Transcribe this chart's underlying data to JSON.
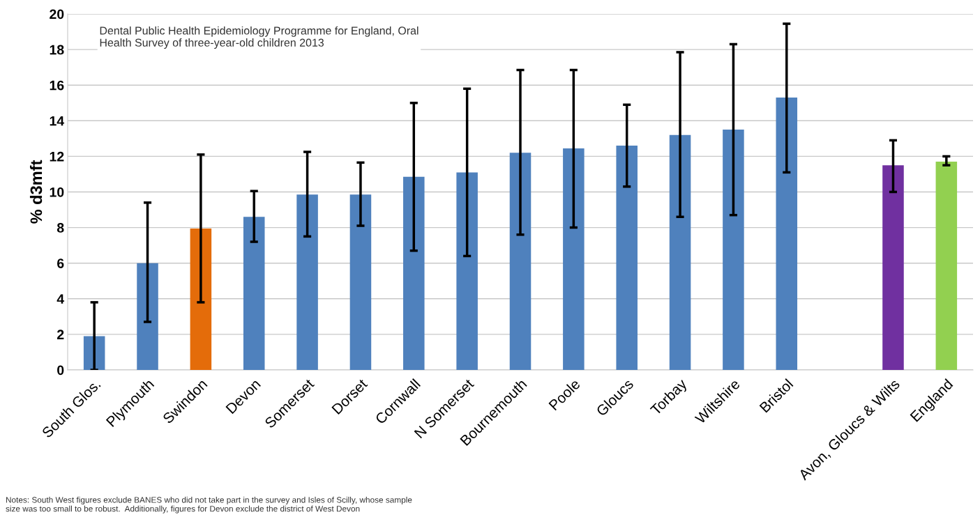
{
  "chart_data": {
    "type": "bar",
    "title": "Dental Public Health Epidemiology Programme for England, Oral\nHealth Survey of three-year-old children 2013",
    "ylabel": "% d3mft",
    "categories": [
      "South Glos.",
      "Plymouth",
      "Swindon",
      "Devon",
      "Somerset",
      "Dorset",
      "Cornwall",
      "N Somerset",
      "Bournemouth",
      "Poole",
      "Gloucs",
      "Torbay",
      "Wiltshire",
      "Bristol",
      null,
      "Avon, Gloucs & Wilts",
      "England"
    ],
    "values": [
      1.9,
      6.0,
      7.95,
      8.6,
      9.85,
      9.85,
      10.85,
      11.1,
      12.2,
      12.45,
      12.6,
      13.2,
      13.5,
      15.3,
      null,
      11.5,
      11.7
    ],
    "errors": [
      [
        0,
        3.8
      ],
      [
        2.7,
        9.4
      ],
      [
        3.8,
        12.1
      ],
      [
        7.2,
        10.05
      ],
      [
        7.5,
        12.25
      ],
      [
        8.1,
        11.65
      ],
      [
        6.7,
        15.0
      ],
      [
        6.4,
        15.8
      ],
      [
        7.6,
        16.85
      ],
      [
        8.0,
        16.85
      ],
      [
        10.3,
        14.9
      ],
      [
        8.6,
        17.85
      ],
      [
        8.7,
        18.3
      ],
      [
        11.1,
        19.45
      ],
      null,
      [
        10.0,
        12.9
      ],
      [
        11.5,
        12.0
      ]
    ],
    "colors": [
      "#4f81bd",
      "#4f81bd",
      "#e46c0a",
      "#4f81bd",
      "#4f81bd",
      "#4f81bd",
      "#4f81bd",
      "#4f81bd",
      "#4f81bd",
      "#4f81bd",
      "#4f81bd",
      "#4f81bd",
      "#4f81bd",
      "#4f81bd",
      "#4f81bd",
      "#7030a0",
      "#92d050"
    ],
    "ylim": [
      0,
      20
    ],
    "yticks": [
      0,
      2,
      4,
      6,
      8,
      10,
      12,
      14,
      16,
      18,
      20
    ],
    "grid": "y",
    "annotations": [
      "Notes: South West figures exclude BANES who did not take part in the survey and Isles of Scilly, whose sample\nsize was too small to be robust.  Additionally, figures for Devon exclude the district of West Devon"
    ]
  }
}
